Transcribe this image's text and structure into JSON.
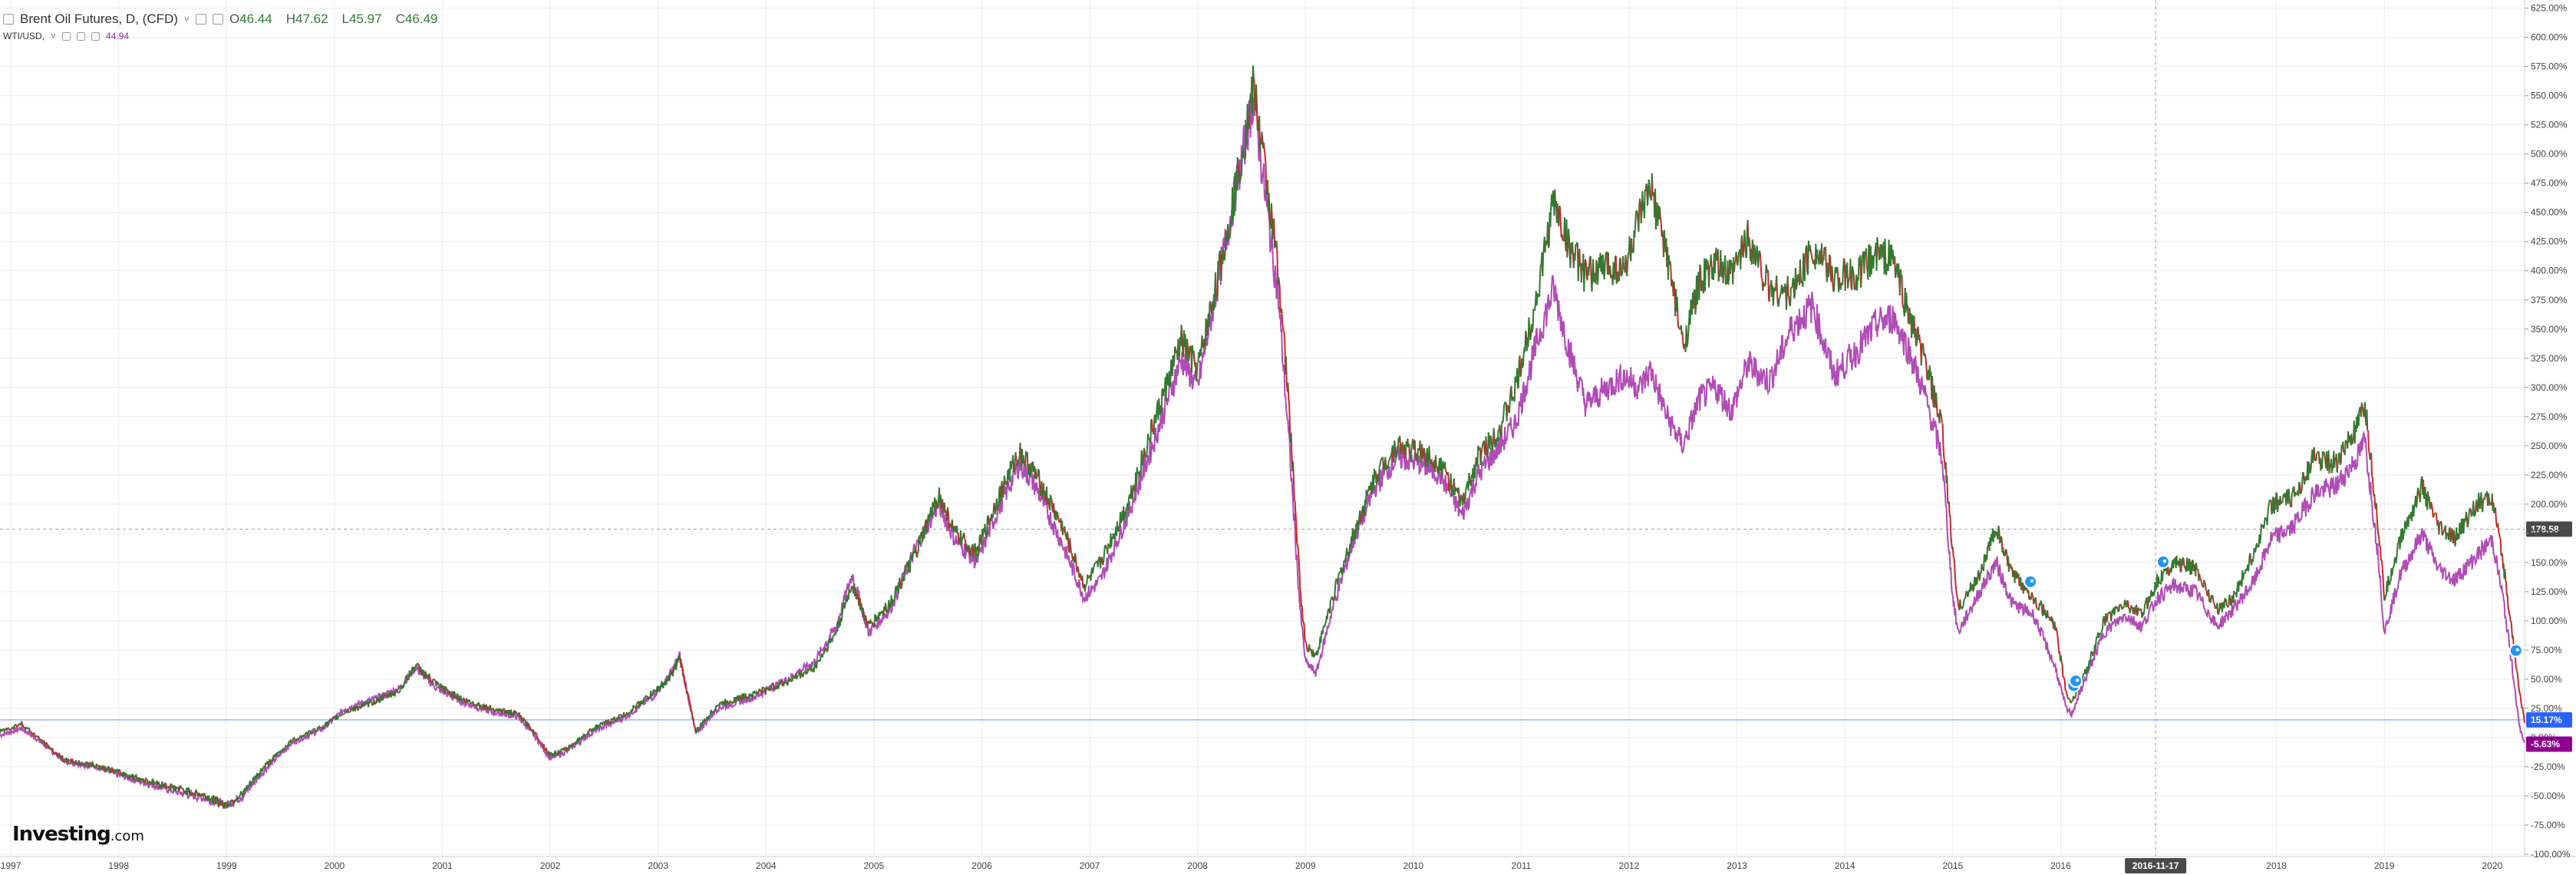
{
  "legend": {
    "main_title": "Brent Oil Futures, D, (CFD)",
    "main_caret": "˅",
    "open_key": "O",
    "open": "46.44",
    "high_key": "H",
    "high": "47.62",
    "low_key": "L",
    "low": "45.97",
    "close_key": "C",
    "close": "46.49",
    "secondary_title": "WTI/USD,",
    "secondary_caret": "˅",
    "secondary_value": "44.94"
  },
  "logo": {
    "brand": "Investing",
    "suffix": ".com"
  },
  "chart_data": {
    "type": "line",
    "title": "Brent Oil Futures, D, (CFD)",
    "x_ticks": [
      "1997",
      "1998",
      "1999",
      "2000",
      "2001",
      "2002",
      "2003",
      "2004",
      "2005",
      "2006",
      "2007",
      "2008",
      "2009",
      "2010",
      "2011",
      "2012",
      "2013",
      "2014",
      "2015",
      "2016",
      "2018",
      "2019",
      "2020"
    ],
    "x_range": [
      1996.9,
      2020.3
    ],
    "y_ticks": [
      "625.00%",
      "600.00%",
      "575.00%",
      "550.00%",
      "525.00%",
      "500.00%",
      "475.00%",
      "450.00%",
      "425.00%",
      "400.00%",
      "375.00%",
      "350.00%",
      "325.00%",
      "300.00%",
      "275.00%",
      "250.00%",
      "225.00%",
      "200.00%",
      "175.00%",
      "150.00%",
      "125.00%",
      "100.00%",
      "75.00%",
      "50.00%",
      "25.00%",
      "0.00%",
      "-25.00%",
      "-50.00%",
      "-75.00%",
      "-100.00%"
    ],
    "y_range": [
      -102,
      632
    ],
    "y_unit": "%",
    "grid": true,
    "crosshair": {
      "x_label": "2016-11-17",
      "x": 2016.88,
      "y_label": "178.58",
      "y": 178.58
    },
    "last_value_badges": [
      {
        "label": "15.17%",
        "y": 15.17,
        "color": "#2962ff"
      },
      {
        "label": "-5.63%",
        "y": -5.63,
        "color": "#8e008e"
      }
    ],
    "event_markers": [
      2015.72,
      2016.12,
      2016.14,
      2016.95,
      2020.22
    ],
    "series": [
      {
        "name": "Brent Oil Futures, D, (CFD)",
        "color_up": "#2e7d32",
        "color_down": "#c62828",
        "points": [
          [
            1996.9,
            5
          ],
          [
            1997.1,
            12
          ],
          [
            1997.25,
            0
          ],
          [
            1997.5,
            -20
          ],
          [
            1997.8,
            -24
          ],
          [
            1998.0,
            -30
          ],
          [
            1998.3,
            -38
          ],
          [
            1998.6,
            -45
          ],
          [
            1998.8,
            -50
          ],
          [
            1999.0,
            -58
          ],
          [
            1999.15,
            -48
          ],
          [
            1999.35,
            -25
          ],
          [
            1999.6,
            -3
          ],
          [
            1999.9,
            10
          ],
          [
            2000.1,
            22
          ],
          [
            2000.35,
            30
          ],
          [
            2000.6,
            40
          ],
          [
            2000.75,
            62
          ],
          [
            2000.95,
            45
          ],
          [
            2001.2,
            32
          ],
          [
            2001.45,
            25
          ],
          [
            2001.7,
            20
          ],
          [
            2001.85,
            5
          ],
          [
            2002.0,
            -15
          ],
          [
            2002.15,
            -10
          ],
          [
            2002.4,
            8
          ],
          [
            2002.7,
            20
          ],
          [
            2002.95,
            38
          ],
          [
            2003.1,
            50
          ],
          [
            2003.2,
            68
          ],
          [
            2003.35,
            5
          ],
          [
            2003.55,
            28
          ],
          [
            2003.9,
            38
          ],
          [
            2004.2,
            48
          ],
          [
            2004.45,
            60
          ],
          [
            2004.65,
            90
          ],
          [
            2004.8,
            132
          ],
          [
            2004.95,
            95
          ],
          [
            2005.15,
            115
          ],
          [
            2005.4,
            160
          ],
          [
            2005.6,
            208
          ],
          [
            2005.75,
            175
          ],
          [
            2005.95,
            158
          ],
          [
            2006.15,
            205
          ],
          [
            2006.35,
            245
          ],
          [
            2006.5,
            225
          ],
          [
            2006.75,
            180
          ],
          [
            2006.95,
            130
          ],
          [
            2007.1,
            150
          ],
          [
            2007.35,
            200
          ],
          [
            2007.6,
            270
          ],
          [
            2007.85,
            340
          ],
          [
            2008.0,
            315
          ],
          [
            2008.25,
            420
          ],
          [
            2008.45,
            520
          ],
          [
            2008.52,
            558
          ],
          [
            2008.62,
            490
          ],
          [
            2008.75,
            400
          ],
          [
            2008.85,
            280
          ],
          [
            2008.95,
            130
          ],
          [
            2009.0,
            80
          ],
          [
            2009.1,
            70
          ],
          [
            2009.25,
            120
          ],
          [
            2009.45,
            175
          ],
          [
            2009.65,
            225
          ],
          [
            2009.85,
            250
          ],
          [
            2010.05,
            245
          ],
          [
            2010.25,
            235
          ],
          [
            2010.45,
            200
          ],
          [
            2010.6,
            240
          ],
          [
            2010.8,
            265
          ],
          [
            2010.95,
            300
          ],
          [
            2011.15,
            380
          ],
          [
            2011.3,
            460
          ],
          [
            2011.45,
            420
          ],
          [
            2011.6,
            395
          ],
          [
            2011.8,
            405
          ],
          [
            2011.95,
            400
          ],
          [
            2012.1,
            445
          ],
          [
            2012.2,
            470
          ],
          [
            2012.35,
            415
          ],
          [
            2012.5,
            335
          ],
          [
            2012.65,
            390
          ],
          [
            2012.8,
            405
          ],
          [
            2012.95,
            395
          ],
          [
            2013.1,
            430
          ],
          [
            2013.3,
            385
          ],
          [
            2013.5,
            380
          ],
          [
            2013.7,
            420
          ],
          [
            2013.9,
            395
          ],
          [
            2014.1,
            395
          ],
          [
            2014.3,
            415
          ],
          [
            2014.45,
            410
          ],
          [
            2014.6,
            360
          ],
          [
            2014.75,
            320
          ],
          [
            2014.9,
            265
          ],
          [
            2015.0,
            160
          ],
          [
            2015.05,
            110
          ],
          [
            2015.25,
            140
          ],
          [
            2015.4,
            180
          ],
          [
            2015.55,
            140
          ],
          [
            2015.75,
            120
          ],
          [
            2015.95,
            95
          ],
          [
            2016.05,
            40
          ],
          [
            2016.1,
            30
          ],
          [
            2016.25,
            60
          ],
          [
            2016.4,
            100
          ],
          [
            2016.6,
            115
          ],
          [
            2016.75,
            105
          ],
          [
            2016.9,
            135
          ],
          [
            2017.05,
            150
          ],
          [
            2017.25,
            145
          ],
          [
            2017.45,
            110
          ],
          [
            2017.6,
            120
          ],
          [
            2017.8,
            160
          ],
          [
            2017.95,
            200
          ],
          [
            2018.15,
            205
          ],
          [
            2018.35,
            240
          ],
          [
            2018.55,
            235
          ],
          [
            2018.75,
            265
          ],
          [
            2018.82,
            285
          ],
          [
            2018.95,
            175
          ],
          [
            2019.0,
            120
          ],
          [
            2019.15,
            170
          ],
          [
            2019.35,
            215
          ],
          [
            2019.5,
            180
          ],
          [
            2019.65,
            170
          ],
          [
            2019.85,
            200
          ],
          [
            2020.0,
            205
          ],
          [
            2020.1,
            150
          ],
          [
            2020.2,
            80
          ],
          [
            2020.25,
            40
          ],
          [
            2020.3,
            15
          ]
        ]
      },
      {
        "name": "WTI/USD",
        "color": "#b04cb6",
        "points": [
          [
            1996.9,
            2
          ],
          [
            1997.1,
            8
          ],
          [
            1997.25,
            -2
          ],
          [
            1997.5,
            -20
          ],
          [
            1997.8,
            -25
          ],
          [
            1998.0,
            -32
          ],
          [
            1998.3,
            -40
          ],
          [
            1998.6,
            -48
          ],
          [
            1998.8,
            -52
          ],
          [
            1999.0,
            -58
          ],
          [
            1999.15,
            -50
          ],
          [
            1999.35,
            -28
          ],
          [
            1999.6,
            -5
          ],
          [
            1999.9,
            8
          ],
          [
            2000.1,
            25
          ],
          [
            2000.35,
            32
          ],
          [
            2000.6,
            42
          ],
          [
            2000.75,
            60
          ],
          [
            2000.95,
            42
          ],
          [
            2001.2,
            30
          ],
          [
            2001.45,
            22
          ],
          [
            2001.7,
            18
          ],
          [
            2001.85,
            2
          ],
          [
            2002.0,
            -18
          ],
          [
            2002.15,
            -12
          ],
          [
            2002.4,
            5
          ],
          [
            2002.7,
            18
          ],
          [
            2002.95,
            35
          ],
          [
            2003.1,
            52
          ],
          [
            2003.2,
            70
          ],
          [
            2003.35,
            3
          ],
          [
            2003.55,
            25
          ],
          [
            2003.9,
            35
          ],
          [
            2004.2,
            50
          ],
          [
            2004.45,
            65
          ],
          [
            2004.65,
            95
          ],
          [
            2004.8,
            140
          ],
          [
            2004.95,
            90
          ],
          [
            2005.15,
            110
          ],
          [
            2005.4,
            165
          ],
          [
            2005.6,
            200
          ],
          [
            2005.75,
            170
          ],
          [
            2005.95,
            150
          ],
          [
            2006.15,
            195
          ],
          [
            2006.35,
            235
          ],
          [
            2006.5,
            215
          ],
          [
            2006.75,
            165
          ],
          [
            2006.95,
            120
          ],
          [
            2007.1,
            135
          ],
          [
            2007.35,
            190
          ],
          [
            2007.6,
            255
          ],
          [
            2007.85,
            325
          ],
          [
            2008.0,
            300
          ],
          [
            2008.25,
            420
          ],
          [
            2008.45,
            515
          ],
          [
            2008.52,
            548
          ],
          [
            2008.62,
            470
          ],
          [
            2008.75,
            375
          ],
          [
            2008.85,
            250
          ],
          [
            2008.95,
            110
          ],
          [
            2009.0,
            65
          ],
          [
            2009.1,
            55
          ],
          [
            2009.25,
            110
          ],
          [
            2009.45,
            170
          ],
          [
            2009.65,
            215
          ],
          [
            2009.85,
            240
          ],
          [
            2010.05,
            235
          ],
          [
            2010.25,
            225
          ],
          [
            2010.45,
            190
          ],
          [
            2010.6,
            225
          ],
          [
            2010.8,
            250
          ],
          [
            2010.95,
            270
          ],
          [
            2011.15,
            340
          ],
          [
            2011.3,
            385
          ],
          [
            2011.45,
            330
          ],
          [
            2011.6,
            285
          ],
          [
            2011.8,
            300
          ],
          [
            2011.95,
            310
          ],
          [
            2012.1,
            300
          ],
          [
            2012.2,
            315
          ],
          [
            2012.35,
            275
          ],
          [
            2012.5,
            250
          ],
          [
            2012.65,
            290
          ],
          [
            2012.8,
            300
          ],
          [
            2012.95,
            280
          ],
          [
            2013.1,
            320
          ],
          [
            2013.3,
            305
          ],
          [
            2013.5,
            350
          ],
          [
            2013.7,
            370
          ],
          [
            2013.9,
            310
          ],
          [
            2014.1,
            330
          ],
          [
            2014.3,
            355
          ],
          [
            2014.45,
            360
          ],
          [
            2014.6,
            330
          ],
          [
            2014.75,
            290
          ],
          [
            2014.9,
            240
          ],
          [
            2015.0,
            120
          ],
          [
            2015.05,
            90
          ],
          [
            2015.25,
            125
          ],
          [
            2015.4,
            150
          ],
          [
            2015.55,
            115
          ],
          [
            2015.75,
            105
          ],
          [
            2015.95,
            60
          ],
          [
            2016.05,
            25
          ],
          [
            2016.1,
            20
          ],
          [
            2016.25,
            55
          ],
          [
            2016.4,
            90
          ],
          [
            2016.6,
            105
          ],
          [
            2016.75,
            95
          ],
          [
            2016.9,
            120
          ],
          [
            2017.05,
            130
          ],
          [
            2017.25,
            125
          ],
          [
            2017.45,
            95
          ],
          [
            2017.6,
            110
          ],
          [
            2017.8,
            135
          ],
          [
            2017.95,
            170
          ],
          [
            2018.15,
            180
          ],
          [
            2018.35,
            210
          ],
          [
            2018.55,
            215
          ],
          [
            2018.75,
            240
          ],
          [
            2018.82,
            255
          ],
          [
            2018.95,
            150
          ],
          [
            2019.0,
            90
          ],
          [
            2019.15,
            140
          ],
          [
            2019.35,
            175
          ],
          [
            2019.5,
            145
          ],
          [
            2019.65,
            135
          ],
          [
            2019.85,
            155
          ],
          [
            2020.0,
            170
          ],
          [
            2020.1,
            120
          ],
          [
            2020.2,
            50
          ],
          [
            2020.25,
            10
          ],
          [
            2020.3,
            -5
          ]
        ]
      }
    ]
  }
}
